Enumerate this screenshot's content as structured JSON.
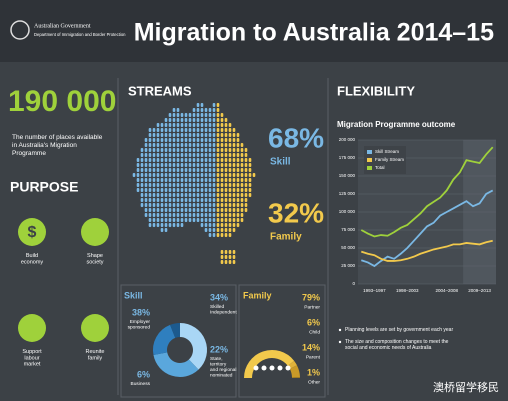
{
  "header": {
    "agency": "Australian Government",
    "department": "Department of Immigration and Border Protection",
    "title": "Migration to Australia 2014–15"
  },
  "places": {
    "value": "190 000",
    "caption": "The number of places available in Australia's Migration Programme"
  },
  "purpose": {
    "heading": "PURPOSE",
    "items": [
      "Build economy",
      "Shape society",
      "Support labour market",
      "Reunite family"
    ]
  },
  "streams": {
    "heading": "STREAMS",
    "names": [
      "Skill",
      "Family"
    ],
    "values": [
      68,
      32
    ],
    "value_labels": [
      "68%",
      "32%"
    ],
    "colors": [
      "#7ab8e4",
      "#f2c94c"
    ]
  },
  "skill": {
    "heading": "Skill",
    "names": [
      "Employer sponsored",
      "Skilled Independent",
      "State, territory and regional nominated",
      "Business"
    ],
    "values": [
      38,
      34,
      22,
      6
    ],
    "value_labels": [
      "38%",
      "34%",
      "22%",
      "6%"
    ],
    "colors": [
      "#a9d6f5",
      "#5aa7dc",
      "#2f7fbf",
      "#1c5a8e"
    ]
  },
  "family": {
    "heading": "Family",
    "names": [
      "Partner",
      "Child",
      "Parent",
      "Other"
    ],
    "values": [
      79,
      6,
      14,
      1
    ],
    "value_labels": [
      "79%",
      "6%",
      "14%",
      "1%"
    ],
    "colors": [
      "#f2c94c",
      "#e0b23a",
      "#c99a28",
      "#a87f1c"
    ]
  },
  "flexibility": {
    "heading": "FLEXIBILITY",
    "notes": [
      "Planning levels are set by government each year",
      "The size and composition changes to meet the social and economic needs of Australia"
    ]
  },
  "chart_data": {
    "type": "line",
    "title": "Migration Programme outcome",
    "categories": [
      null,
      null,
      "1993–1997",
      null,
      null,
      null,
      null,
      "1998–2003",
      null,
      null,
      null,
      null,
      null,
      "2004–2008",
      null,
      null,
      null,
      null,
      "2009–2013",
      null,
      null
    ],
    "series": [
      {
        "name": "Skill Stream",
        "color": "#7ab8e4",
        "values": [
          33000,
          30000,
          25000,
          32000,
          38000,
          35000,
          42000,
          50000,
          60000,
          70000,
          80000,
          85000,
          95000,
          100000,
          105000,
          110000,
          115000,
          108000,
          112000,
          125000,
          130000
        ]
      },
      {
        "name": "Family Stream",
        "color": "#f2c94c",
        "values": [
          45000,
          42000,
          40000,
          35000,
          32000,
          32000,
          33000,
          35000,
          38000,
          42000,
          45000,
          48000,
          50000,
          52000,
          55000,
          55000,
          57000,
          56000,
          55000,
          58000,
          60000
        ]
      },
      {
        "name": "Total",
        "color": "#9fd13b",
        "values": [
          75000,
          70000,
          66000,
          68000,
          67000,
          72000,
          78000,
          82000,
          90000,
          98000,
          108000,
          114000,
          120000,
          130000,
          145000,
          155000,
          172000,
          170000,
          168000,
          180000,
          190000
        ]
      }
    ],
    "ylim": [
      0,
      200000
    ],
    "yticks": [
      0,
      {
        "value": 25000,
        "label": "25 000"
      },
      {
        "value": 50000,
        "label": "50 000"
      },
      {
        "value": 75000,
        "label": "75 000"
      },
      {
        "value": 100000,
        "label": "100 000"
      },
      {
        "value": 125000,
        "label": "125 000"
      },
      {
        "value": 150000,
        "label": "150 000"
      },
      {
        "value": 175000,
        "label": "175 000"
      },
      {
        "value": 200000,
        "label": "200 000"
      }
    ],
    "grid": true,
    "legend": "upper left"
  },
  "watermark": "澳桥留学移民"
}
